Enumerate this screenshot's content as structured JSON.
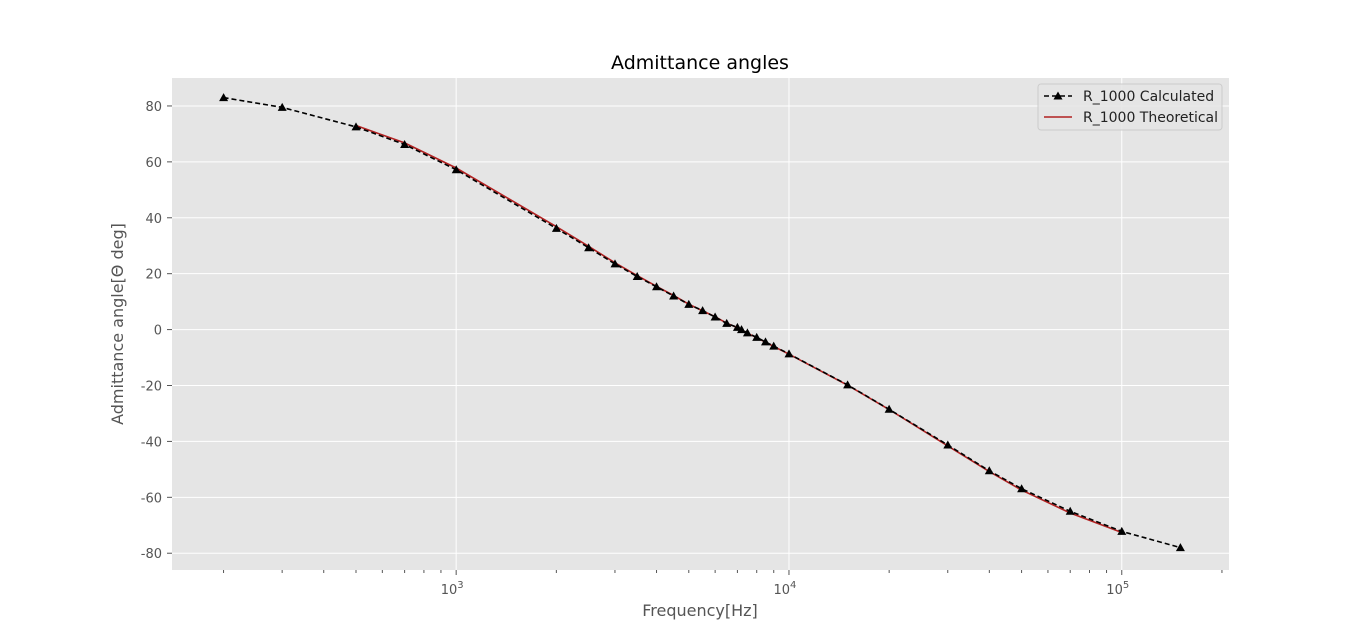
{
  "chart_data": {
    "type": "line",
    "title": "Admittance angles",
    "xlabel": "Frequency[Hz]",
    "ylabel": "Admittance angle[Θ deg]",
    "xscale": "log",
    "xlim": [
      140,
      210000
    ],
    "ylim": [
      -86,
      90
    ],
    "grid": true,
    "legend_position": "top-right",
    "y_ticks": [
      80,
      60,
      40,
      20,
      0,
      -20,
      -40,
      -60,
      -80
    ],
    "x_major_ticks": [
      {
        "value": 1000,
        "base": "10",
        "exp": "3"
      },
      {
        "value": 10000,
        "base": "10",
        "exp": "4"
      },
      {
        "value": 100000,
        "base": "10",
        "exp": "5"
      }
    ],
    "colors": {
      "plot_bg": "#e5e5e5",
      "grid": "#ffffff",
      "calculated": "#000000",
      "theoretical": "#b22222"
    },
    "series": [
      {
        "name": "R_1000 Calculated",
        "style": "dashed-triangle",
        "x": [
          200,
          300,
          500,
          700,
          1000,
          2000,
          2500,
          3000,
          3500,
          4000,
          4500,
          5000,
          5500,
          6000,
          6500,
          7000,
          7200,
          7500,
          8000,
          8500,
          9000,
          10000,
          15000,
          20000,
          30000,
          40000,
          50000,
          70000,
          100000,
          150000
        ],
        "y": [
          83,
          79.5,
          72.5,
          66.2,
          57.2,
          36.2,
          29.3,
          23.5,
          19,
          15.3,
          12,
          9,
          6.8,
          4.5,
          2.2,
          0.8,
          0,
          -1.2,
          -2.8,
          -4.4,
          -5.9,
          -8.7,
          -19.8,
          -28.5,
          -41.3,
          -50.5,
          -56.9,
          -65,
          -72.2,
          -78
        ]
      },
      {
        "name": "R_1000 Theoretical",
        "style": "solid",
        "x": [
          500,
          700,
          1000,
          2000,
          2500,
          3000,
          3500,
          4000,
          4500,
          5000,
          5500,
          6000,
          6500,
          7000,
          7500,
          8000,
          8500,
          9000,
          10000,
          15000,
          20000,
          30000,
          40000,
          50000,
          70000,
          100000
        ],
        "y": [
          73,
          66.8,
          57.8,
          36.8,
          29.8,
          23.9,
          19.3,
          15.5,
          12.2,
          9.1,
          6.7,
          4.6,
          2.3,
          0.7,
          -1.3,
          -2.9,
          -4.5,
          -6,
          -8.8,
          -19.9,
          -28.6,
          -41.6,
          -50.8,
          -57.4,
          -65.6,
          -72.6
        ]
      }
    ]
  }
}
